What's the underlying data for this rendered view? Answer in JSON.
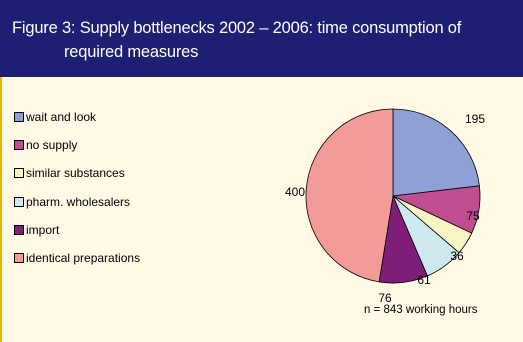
{
  "title": {
    "line1": "Figure 3: Supply bottlenecks 2002 – 2006: time consumption of",
    "line2": "required measures"
  },
  "colors": {
    "header_bg": "#1e1e72",
    "panel_bg": "#fff9e6"
  },
  "chart_data": {
    "type": "pie",
    "title": "Figure 3: Supply bottlenecks 2002 – 2006: time consumption of required measures",
    "slices": [
      {
        "label": "wait and look",
        "value": 195,
        "color": "#8fa0d6"
      },
      {
        "label": "no supply",
        "value": 75,
        "color": "#c04d8f"
      },
      {
        "label": "similar substances",
        "value": 36,
        "color": "#f7f4c5"
      },
      {
        "label": "pharm. wholesalers",
        "value": 61,
        "color": "#cde9ee"
      },
      {
        "label": "import",
        "value": 76,
        "color": "#7f1e78"
      },
      {
        "label": "identical preparations",
        "value": 400,
        "color": "#f29b98"
      }
    ],
    "legend_position": "left",
    "annotation": "n = 843 working hours"
  }
}
